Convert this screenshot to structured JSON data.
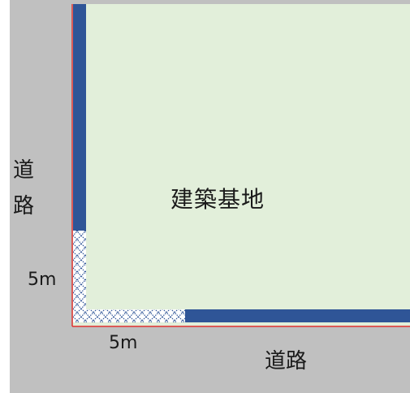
{
  "labels": {
    "road_left": "道路",
    "road_left_line1": "道",
    "road_left_line2": "路",
    "road_bottom": "道路",
    "site": "建築基地",
    "dimension_vertical": "5m",
    "dimension_horizontal": "5m"
  },
  "colors": {
    "road": "#c0c0c0",
    "site": "#e2efda",
    "boundary": "#e03030",
    "setback_bar": "#2f5597",
    "hatch": "#2f5597"
  }
}
